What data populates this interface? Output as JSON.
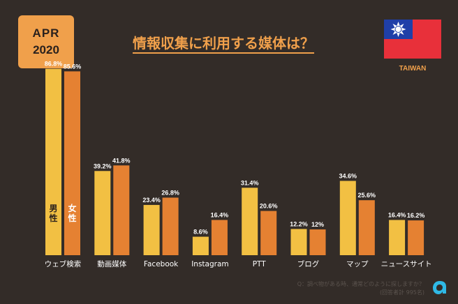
{
  "badge": {
    "line1": "APR",
    "line2": "2020"
  },
  "title": "情報収集に利用する媒体は？",
  "country": "TAIWAN",
  "note": {
    "question": "Q：調べ物がある時、通常どのように探しますか？",
    "sample": "(回答者計 995名)"
  },
  "colors": {
    "male": "#f2c043",
    "female": "#e58132",
    "accent": "#f0a04b",
    "background": "#332c28"
  },
  "chart_data": {
    "type": "bar",
    "title": "情報収集に利用する媒体は？",
    "categories": [
      "ウェブ検索",
      "動画媒体",
      "Facebook",
      "Instagram",
      "PTT",
      "ブログ",
      "マップ",
      "ニュースサイト"
    ],
    "series": [
      {
        "name": "男性",
        "values": [
          86.8,
          39.2,
          23.4,
          8.6,
          31.4,
          12.2,
          34.6,
          16.4
        ]
      },
      {
        "name": "女性",
        "values": [
          85.6,
          41.8,
          26.8,
          16.4,
          20.6,
          12,
          25.6,
          16.2
        ]
      }
    ],
    "value_suffix": "%",
    "ylim": [
      0,
      100
    ],
    "grid": false
  }
}
